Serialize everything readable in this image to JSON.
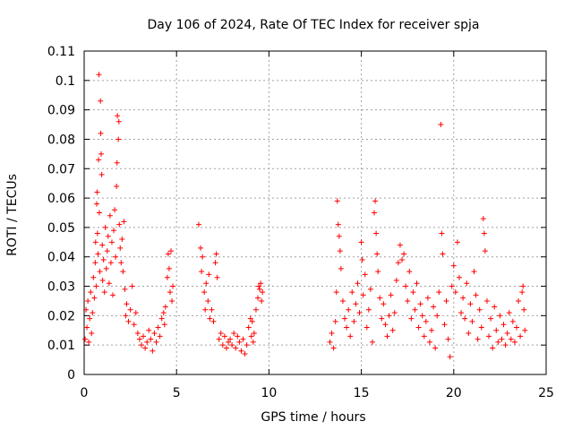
{
  "chart_data": {
    "type": "scatter",
    "title": "Day 106 of 2024, Rate Of TEC Index for receiver spja",
    "xlabel": "GPS time / hours",
    "ylabel": "ROTI / TECUs",
    "xlim": [
      0,
      25
    ],
    "ylim": [
      0,
      0.11
    ],
    "xticks": [
      0,
      5,
      10,
      15,
      20,
      25
    ],
    "xtick_labels": [
      "0",
      "5",
      "10",
      "15",
      "20",
      "25"
    ],
    "yticks": [
      0,
      0.01,
      0.02,
      0.03,
      0.04,
      0.05,
      0.06,
      0.07,
      0.08,
      0.09,
      0.1,
      0.11
    ],
    "ytick_labels": [
      "0",
      "0.01",
      "0.02",
      "0.03",
      "0.04",
      "0.05",
      "0.06",
      "0.07",
      "0.08",
      "0.09",
      "0.1",
      "0.11"
    ],
    "grid": true,
    "marker": "+",
    "color": "#ff0000",
    "series": [
      {
        "name": "ROTI",
        "points": [
          [
            0.05,
            0.012
          ],
          [
            0.1,
            0.022
          ],
          [
            0.15,
            0.016
          ],
          [
            0.2,
            0.025
          ],
          [
            0.25,
            0.011
          ],
          [
            0.3,
            0.019
          ],
          [
            0.35,
            0.028
          ],
          [
            0.4,
            0.014
          ],
          [
            0.45,
            0.021
          ],
          [
            0.5,
            0.033
          ],
          [
            0.55,
            0.026
          ],
          [
            0.6,
            0.038
          ],
          [
            0.62,
            0.045
          ],
          [
            0.65,
            0.03
          ],
          [
            0.68,
            0.058
          ],
          [
            0.7,
            0.062
          ],
          [
            0.72,
            0.048
          ],
          [
            0.75,
            0.041
          ],
          [
            0.78,
            0.073
          ],
          [
            0.8,
            0.102
          ],
          [
            0.82,
            0.055
          ],
          [
            0.85,
            0.035
          ],
          [
            0.88,
            0.093
          ],
          [
            0.9,
            0.082
          ],
          [
            0.92,
            0.075
          ],
          [
            0.95,
            0.068
          ],
          [
            0.98,
            0.044
          ],
          [
            1.0,
            0.032
          ],
          [
            1.05,
            0.039
          ],
          [
            1.1,
            0.028
          ],
          [
            1.15,
            0.05
          ],
          [
            1.2,
            0.036
          ],
          [
            1.25,
            0.042
          ],
          [
            1.3,
            0.047
          ],
          [
            1.35,
            0.031
          ],
          [
            1.4,
            0.054
          ],
          [
            1.45,
            0.038
          ],
          [
            1.5,
            0.045
          ],
          [
            1.55,
            0.027
          ],
          [
            1.6,
            0.049
          ],
          [
            1.65,
            0.056
          ],
          [
            1.7,
            0.04
          ],
          [
            1.75,
            0.064
          ],
          [
            1.78,
            0.072
          ],
          [
            1.8,
            0.088
          ],
          [
            1.85,
            0.08
          ],
          [
            1.88,
            0.086
          ],
          [
            1.9,
            0.051
          ],
          [
            1.95,
            0.043
          ],
          [
            2.0,
            0.038
          ],
          [
            2.05,
            0.046
          ],
          [
            2.1,
            0.035
          ],
          [
            2.15,
            0.052
          ],
          [
            2.2,
            0.029
          ],
          [
            2.25,
            0.02
          ],
          [
            2.3,
            0.024
          ],
          [
            2.4,
            0.018
          ],
          [
            2.5,
            0.022
          ],
          [
            2.6,
            0.03
          ],
          [
            2.7,
            0.017
          ],
          [
            2.8,
            0.021
          ],
          [
            2.9,
            0.014
          ],
          [
            3.0,
            0.012
          ],
          [
            3.1,
            0.01
          ],
          [
            3.2,
            0.013
          ],
          [
            3.3,
            0.009
          ],
          [
            3.4,
            0.011
          ],
          [
            3.5,
            0.015
          ],
          [
            3.6,
            0.012
          ],
          [
            3.7,
            0.008
          ],
          [
            3.8,
            0.014
          ],
          [
            3.9,
            0.011
          ],
          [
            4.0,
            0.016
          ],
          [
            4.1,
            0.013
          ],
          [
            4.2,
            0.019
          ],
          [
            4.3,
            0.021
          ],
          [
            4.35,
            0.017
          ],
          [
            4.4,
            0.023
          ],
          [
            4.5,
            0.033
          ],
          [
            4.55,
            0.041
          ],
          [
            4.6,
            0.036
          ],
          [
            4.65,
            0.028
          ],
          [
            4.7,
            0.042
          ],
          [
            4.75,
            0.025
          ],
          [
            4.8,
            0.03
          ],
          [
            6.2,
            0.051
          ],
          [
            6.3,
            0.043
          ],
          [
            6.35,
            0.035
          ],
          [
            6.4,
            0.04
          ],
          [
            6.5,
            0.028
          ],
          [
            6.55,
            0.022
          ],
          [
            6.6,
            0.031
          ],
          [
            6.7,
            0.025
          ],
          [
            6.75,
            0.034
          ],
          [
            6.8,
            0.019
          ],
          [
            6.9,
            0.022
          ],
          [
            7.0,
            0.018
          ],
          [
            7.1,
            0.038
          ],
          [
            7.15,
            0.041
          ],
          [
            7.2,
            0.033
          ],
          [
            7.3,
            0.012
          ],
          [
            7.4,
            0.014
          ],
          [
            7.5,
            0.01
          ],
          [
            7.6,
            0.013
          ],
          [
            7.7,
            0.009
          ],
          [
            7.8,
            0.011
          ],
          [
            7.9,
            0.012
          ],
          [
            8.0,
            0.01
          ],
          [
            8.1,
            0.014
          ],
          [
            8.2,
            0.009
          ],
          [
            8.3,
            0.013
          ],
          [
            8.4,
            0.011
          ],
          [
            8.5,
            0.008
          ],
          [
            8.6,
            0.012
          ],
          [
            8.7,
            0.007
          ],
          [
            8.8,
            0.01
          ],
          [
            8.9,
            0.016
          ],
          [
            9.0,
            0.019
          ],
          [
            9.05,
            0.013
          ],
          [
            9.1,
            0.018
          ],
          [
            9.15,
            0.011
          ],
          [
            9.2,
            0.014
          ],
          [
            9.3,
            0.022
          ],
          [
            9.4,
            0.026
          ],
          [
            9.45,
            0.03
          ],
          [
            9.5,
            0.029
          ],
          [
            9.55,
            0.031
          ],
          [
            9.6,
            0.025
          ],
          [
            9.65,
            0.028
          ],
          [
            13.3,
            0.011
          ],
          [
            13.4,
            0.014
          ],
          [
            13.5,
            0.009
          ],
          [
            13.6,
            0.018
          ],
          [
            13.65,
            0.028
          ],
          [
            13.7,
            0.059
          ],
          [
            13.75,
            0.051
          ],
          [
            13.8,
            0.047
          ],
          [
            13.85,
            0.042
          ],
          [
            13.9,
            0.036
          ],
          [
            14.0,
            0.025
          ],
          [
            14.1,
            0.019
          ],
          [
            14.2,
            0.016
          ],
          [
            14.3,
            0.022
          ],
          [
            14.4,
            0.013
          ],
          [
            14.5,
            0.028
          ],
          [
            14.6,
            0.018
          ],
          [
            14.7,
            0.024
          ],
          [
            14.8,
            0.031
          ],
          [
            14.9,
            0.021
          ],
          [
            15.0,
            0.045
          ],
          [
            15.05,
            0.039
          ],
          [
            15.1,
            0.027
          ],
          [
            15.2,
            0.034
          ],
          [
            15.3,
            0.016
          ],
          [
            15.4,
            0.022
          ],
          [
            15.5,
            0.029
          ],
          [
            15.6,
            0.011
          ],
          [
            15.7,
            0.055
          ],
          [
            15.75,
            0.059
          ],
          [
            15.8,
            0.048
          ],
          [
            15.85,
            0.041
          ],
          [
            15.9,
            0.035
          ],
          [
            16.0,
            0.026
          ],
          [
            16.1,
            0.019
          ],
          [
            16.2,
            0.024
          ],
          [
            16.3,
            0.017
          ],
          [
            16.4,
            0.013
          ],
          [
            16.5,
            0.02
          ],
          [
            16.6,
            0.027
          ],
          [
            16.7,
            0.015
          ],
          [
            16.8,
            0.021
          ],
          [
            16.9,
            0.032
          ],
          [
            17.0,
            0.038
          ],
          [
            17.1,
            0.044
          ],
          [
            17.2,
            0.039
          ],
          [
            17.3,
            0.041
          ],
          [
            17.4,
            0.03
          ],
          [
            17.5,
            0.025
          ],
          [
            17.6,
            0.035
          ],
          [
            17.7,
            0.019
          ],
          [
            17.8,
            0.028
          ],
          [
            17.9,
            0.022
          ],
          [
            18.0,
            0.031
          ],
          [
            18.1,
            0.016
          ],
          [
            18.2,
            0.024
          ],
          [
            18.3,
            0.02
          ],
          [
            18.4,
            0.013
          ],
          [
            18.5,
            0.018
          ],
          [
            18.6,
            0.026
          ],
          [
            18.7,
            0.011
          ],
          [
            18.8,
            0.015
          ],
          [
            18.9,
            0.023
          ],
          [
            19.0,
            0.009
          ],
          [
            19.1,
            0.02
          ],
          [
            19.2,
            0.028
          ],
          [
            19.3,
            0.085
          ],
          [
            19.35,
            0.048
          ],
          [
            19.4,
            0.041
          ],
          [
            19.5,
            0.017
          ],
          [
            19.6,
            0.025
          ],
          [
            19.7,
            0.012
          ],
          [
            19.8,
            0.006
          ],
          [
            19.9,
            0.03
          ],
          [
            20.0,
            0.037
          ],
          [
            20.1,
            0.028
          ],
          [
            20.2,
            0.045
          ],
          [
            20.3,
            0.033
          ],
          [
            20.4,
            0.021
          ],
          [
            20.5,
            0.026
          ],
          [
            20.6,
            0.019
          ],
          [
            20.7,
            0.031
          ],
          [
            20.8,
            0.014
          ],
          [
            20.9,
            0.024
          ],
          [
            21.0,
            0.018
          ],
          [
            21.1,
            0.035
          ],
          [
            21.2,
            0.027
          ],
          [
            21.3,
            0.012
          ],
          [
            21.4,
            0.022
          ],
          [
            21.5,
            0.016
          ],
          [
            21.6,
            0.053
          ],
          [
            21.65,
            0.048
          ],
          [
            21.7,
            0.042
          ],
          [
            21.8,
            0.025
          ],
          [
            21.9,
            0.013
          ],
          [
            22.0,
            0.019
          ],
          [
            22.1,
            0.009
          ],
          [
            22.2,
            0.023
          ],
          [
            22.3,
            0.015
          ],
          [
            22.4,
            0.011
          ],
          [
            22.5,
            0.02
          ],
          [
            22.6,
            0.012
          ],
          [
            22.7,
            0.017
          ],
          [
            22.8,
            0.01
          ],
          [
            22.9,
            0.014
          ],
          [
            23.0,
            0.021
          ],
          [
            23.1,
            0.012
          ],
          [
            23.2,
            0.018
          ],
          [
            23.3,
            0.011
          ],
          [
            23.4,
            0.016
          ],
          [
            23.5,
            0.025
          ],
          [
            23.6,
            0.013
          ],
          [
            23.7,
            0.028
          ],
          [
            23.75,
            0.03
          ],
          [
            23.8,
            0.022
          ],
          [
            23.85,
            0.015
          ]
        ]
      }
    ]
  }
}
